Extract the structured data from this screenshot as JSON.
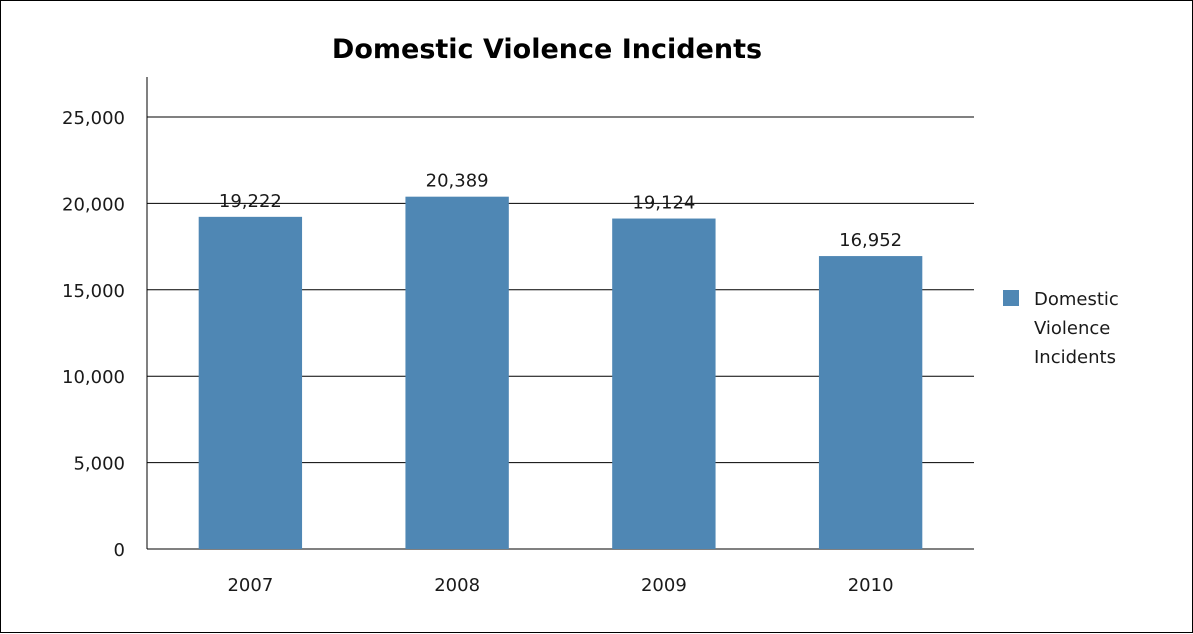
{
  "chart_data": {
    "type": "bar",
    "title": "Domestic Violence Incidents",
    "xlabel": "",
    "ylabel": "",
    "categories": [
      "2007",
      "2008",
      "2009",
      "2010"
    ],
    "series": [
      {
        "name": "Domestic Violence Incidents",
        "values": [
          19222,
          20389,
          19124,
          16952
        ],
        "data_labels": [
          "19,222",
          "20,389",
          "19,124",
          "16,952"
        ],
        "color": "#4f87b4"
      }
    ],
    "ylim": [
      0,
      25000
    ],
    "yticks": [
      0,
      5000,
      10000,
      15000,
      20000,
      25000
    ],
    "ytick_labels": [
      "0",
      "5,000",
      "10,000",
      "15,000",
      "20,000",
      "25,000"
    ],
    "grid": "horizontal",
    "legend": {
      "position": "right",
      "lines": [
        "Domestic",
        "Violence",
        "Incidents"
      ]
    }
  }
}
